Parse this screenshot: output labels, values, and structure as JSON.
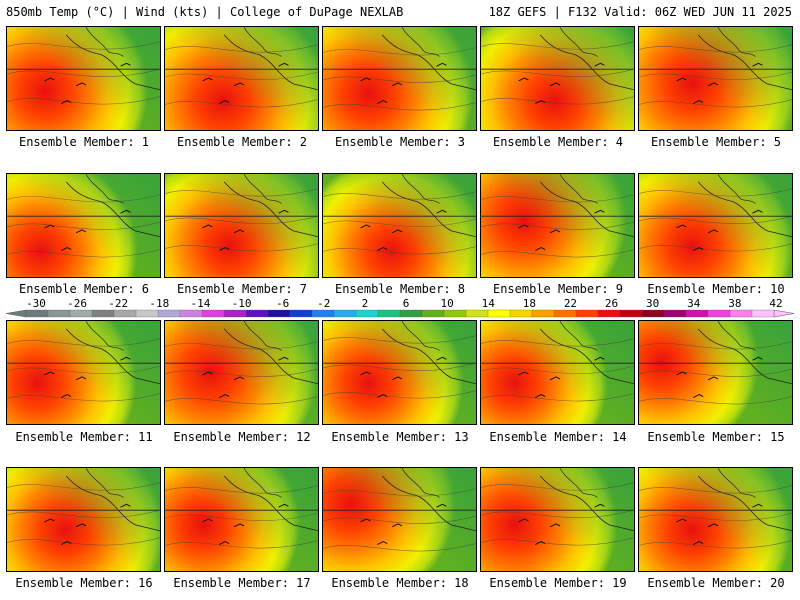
{
  "header": {
    "left": "850mb Temp (°C) | Wind (kts) | College of DuPage NEXLAB",
    "right": "18Z GEFS | F132 Valid: 06Z WED JUN 11 2025"
  },
  "caption_prefix": "Ensemble Member: ",
  "members": [
    {
      "number": "1",
      "intensity": 0.85,
      "hot_spot": [
        0.25,
        0.62
      ]
    },
    {
      "number": "2",
      "intensity": 0.95,
      "hot_spot": [
        0.38,
        0.72
      ]
    },
    {
      "number": "3",
      "intensity": 0.9,
      "hot_spot": [
        0.3,
        0.65
      ]
    },
    {
      "number": "4",
      "intensity": 0.85,
      "hot_spot": [
        0.48,
        0.72
      ]
    },
    {
      "number": "5",
      "intensity": 0.95,
      "hot_spot": [
        0.35,
        0.55
      ]
    },
    {
      "number": "6",
      "intensity": 0.7,
      "hot_spot": [
        0.22,
        0.75
      ]
    },
    {
      "number": "7",
      "intensity": 0.75,
      "hot_spot": [
        0.42,
        0.7
      ]
    },
    {
      "number": "8",
      "intensity": 0.65,
      "hot_spot": [
        0.45,
        0.75
      ]
    },
    {
      "number": "9",
      "intensity": 0.85,
      "hot_spot": [
        0.28,
        0.45
      ]
    },
    {
      "number": "10",
      "intensity": 0.8,
      "hot_spot": [
        0.35,
        0.7
      ]
    },
    {
      "number": "11",
      "intensity": 0.75,
      "hot_spot": [
        0.2,
        0.6
      ]
    },
    {
      "number": "12",
      "intensity": 0.95,
      "hot_spot": [
        0.3,
        0.5
      ]
    },
    {
      "number": "13",
      "intensity": 0.65,
      "hot_spot": [
        0.3,
        0.6
      ]
    },
    {
      "number": "14",
      "intensity": 0.6,
      "hot_spot": [
        0.22,
        0.6
      ]
    },
    {
      "number": "15",
      "intensity": 0.7,
      "hot_spot": [
        0.15,
        0.4
      ]
    },
    {
      "number": "16",
      "intensity": 0.75,
      "hot_spot": [
        0.38,
        0.6
      ]
    },
    {
      "number": "17",
      "intensity": 0.7,
      "hot_spot": [
        0.25,
        0.55
      ]
    },
    {
      "number": "18",
      "intensity": 0.9,
      "hot_spot": [
        0.18,
        0.35
      ]
    },
    {
      "number": "19",
      "intensity": 0.85,
      "hot_spot": [
        0.22,
        0.55
      ]
    },
    {
      "number": "20",
      "intensity": 0.75,
      "hot_spot": [
        0.35,
        0.6
      ]
    }
  ],
  "colorbar": {
    "labels": [
      "-30",
      "-26",
      "-22",
      "-18",
      "-14",
      "-10",
      "-6",
      "-2",
      "2",
      "6",
      "10",
      "14",
      "18",
      "22",
      "26",
      "30",
      "34",
      "38",
      "42"
    ],
    "colors": [
      "#6c7b7b",
      "#8a9695",
      "#a0aaa8",
      "#808080",
      "#a8a8a8",
      "#c8c8c8",
      "#b0a8d8",
      "#d080e0",
      "#e040e0",
      "#b020c8",
      "#6010c0",
      "#2010a0",
      "#1040d0",
      "#2080f0",
      "#20b0f0",
      "#20d0d0",
      "#20c080",
      "#30a040",
      "#60b020",
      "#90c810",
      "#d0e020",
      "#ffff00",
      "#ffd000",
      "#ffa000",
      "#ff7000",
      "#ff4000",
      "#e81010",
      "#c00010",
      "#900020",
      "#a00070",
      "#d010b0",
      "#f040e0",
      "#ff80f0",
      "#ffc0ff"
    ]
  }
}
